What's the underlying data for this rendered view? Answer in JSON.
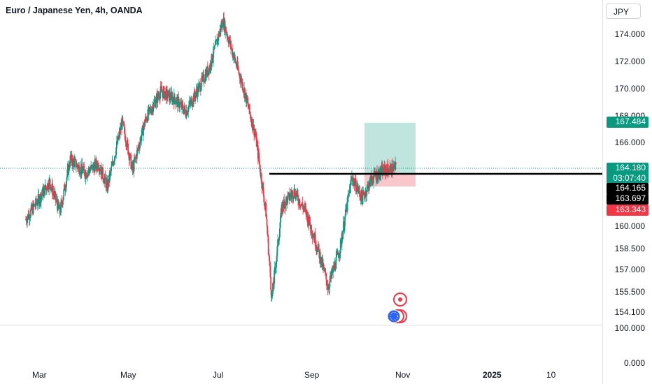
{
  "title": "Euro / Japanese Yen, 4h, OANDA",
  "currency_button": "JPY",
  "price_axis": [
    "174.000",
    "172.000",
    "170.000",
    "168.000",
    "166.000",
    "160.000",
    "158.500",
    "157.000",
    "155.500",
    "154.100"
  ],
  "indicator_axis": [
    "100.000",
    "0.000"
  ],
  "time_axis": [
    {
      "label": "Mar",
      "bold": false
    },
    {
      "label": "May",
      "bold": false
    },
    {
      "label": "Jul",
      "bold": false
    },
    {
      "label": "Sep",
      "bold": false
    },
    {
      "label": "Nov",
      "bold": false
    },
    {
      "label": "2025",
      "bold": true
    },
    {
      "label": "10",
      "bold": false
    }
  ],
  "tags": {
    "target": "167.484",
    "current": "164.180",
    "countdown": "03:07:40",
    "level1": "164.165",
    "level2": "163.697",
    "stop": "163.343"
  },
  "colors": {
    "up": "#089981",
    "down": "#f23645",
    "target_tag": "#089981",
    "current_tag": "#089981",
    "level_tag": "#000000",
    "stop_tag": "#f23645",
    "profit_zone": "#bfe5de",
    "loss_zone": "#f8c7cc"
  },
  "chart_data": {
    "type": "candlestick",
    "symbol": "Euro / Japanese Yen",
    "interval": "4h",
    "source": "OANDA",
    "ylim": [
      154.1,
      175.5
    ],
    "trend_path": [
      [
        "Feb 20",
        160.5
      ],
      [
        "Feb 28",
        161.8
      ],
      [
        "Mar 8",
        163.2
      ],
      [
        "Mar 15",
        161.0
      ],
      [
        "Mar 22",
        164.8
      ],
      [
        "Apr 1",
        163.8
      ],
      [
        "Apr 10",
        164.5
      ],
      [
        "Apr 16",
        162.8
      ],
      [
        "Apr 26",
        167.5
      ],
      [
        "May 3",
        164.0
      ],
      [
        "May 12",
        167.8
      ],
      [
        "May 22",
        169.8
      ],
      [
        "Jun 1",
        169.2
      ],
      [
        "Jun 8",
        168.3
      ],
      [
        "Jun 16",
        169.9
      ],
      [
        "Jun 24",
        171.6
      ],
      [
        "Jul 3",
        175.0
      ],
      [
        "Jul 10",
        172.5
      ],
      [
        "Jul 17",
        170.0
      ],
      [
        "Jul 25",
        166.5
      ],
      [
        "Aug 1",
        161.0
      ],
      [
        "Aug 5",
        155.0
      ],
      [
        "Aug 12",
        161.5
      ],
      [
        "Aug 20",
        162.5
      ],
      [
        "Aug 28",
        161.0
      ],
      [
        "Sep 5",
        158.5
      ],
      [
        "Sep 12",
        155.8
      ],
      [
        "Sep 20",
        158.5
      ],
      [
        "Sep 28",
        163.5
      ],
      [
        "Oct 5",
        162.0
      ],
      [
        "Oct 12",
        163.5
      ],
      [
        "Oct 20",
        164.0
      ],
      [
        "Oct 28",
        164.18
      ]
    ],
    "horizontal_line": 164.165,
    "position": {
      "entry": 163.697,
      "target": 167.484,
      "stop": 163.343
    }
  }
}
